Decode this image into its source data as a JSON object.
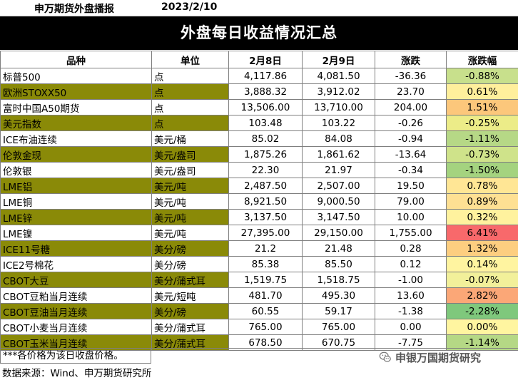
{
  "header": {
    "brand": "申万期货外盘播报",
    "date": "2023/2/10"
  },
  "title": "外盘每日收益情况汇总",
  "columns": [
    "品种",
    "单位",
    "2月8日",
    "2月9日",
    "涨跌",
    "涨跌幅"
  ],
  "rows": [
    {
      "name": "标普500",
      "unit": "点",
      "prev": "4,117.86",
      "curr": "4,081.50",
      "change": "-36.36",
      "pct": "-0.88%",
      "shade": "white",
      "color": "#c8e08c"
    },
    {
      "name": "欧洲STOXX50",
      "unit": "点",
      "prev": "3,888.32",
      "curr": "3,912.02",
      "change": "23.70",
      "pct": "0.61%",
      "shade": "olive",
      "color": "#ffef9c"
    },
    {
      "name": "富时中国A50期货",
      "unit": "点",
      "prev": "13,506.00",
      "curr": "13,710.00",
      "change": "204.00",
      "pct": "1.51%",
      "shade": "white",
      "color": "#fcc77b"
    },
    {
      "name": "美元指数",
      "unit": "点",
      "prev": "103.48",
      "curr": "103.22",
      "change": "-0.26",
      "pct": "-0.25%",
      "shade": "olive",
      "color": "#ecec88"
    },
    {
      "name": "ICE布油连续",
      "unit": "美元/桶",
      "prev": "85.02",
      "curr": "84.08",
      "change": "-0.94",
      "pct": "-1.11%",
      "shade": "white",
      "color": "#b6d886"
    },
    {
      "name": "伦敦金现",
      "unit": "美元/盎司",
      "prev": "1,875.26",
      "curr": "1,861.62",
      "change": "-13.64",
      "pct": "-0.73%",
      "shade": "olive",
      "color": "#cfe38a"
    },
    {
      "name": "伦敦银",
      "unit": "美元/盎司",
      "prev": "22.30",
      "curr": "21.97",
      "change": "-0.34",
      "pct": "-1.50%",
      "shade": "white",
      "color": "#a4d37f"
    },
    {
      "name": "LME铝",
      "unit": "美元/吨",
      "prev": "2,487.50",
      "curr": "2,507.00",
      "change": "19.50",
      "pct": "0.78%",
      "shade": "olive",
      "color": "#ffe695"
    },
    {
      "name": "LME铜",
      "unit": "美元/吨",
      "prev": "8,921.50",
      "curr": "9,000.50",
      "change": "79.00",
      "pct": "0.89%",
      "shade": "white",
      "color": "#fee093"
    },
    {
      "name": "LME锌",
      "unit": "美元/吨",
      "prev": "3,137.50",
      "curr": "3,147.50",
      "change": "10.00",
      "pct": "0.32%",
      "shade": "olive",
      "color": "#fff29e"
    },
    {
      "name": "LME镍",
      "unit": "美元/吨",
      "prev": "27,395.00",
      "curr": "29,150.00",
      "change": "1,755.00",
      "pct": "6.41%",
      "shade": "white",
      "color": "#f8696b"
    },
    {
      "name": "ICE11号糖",
      "unit": "美分/磅",
      "prev": "21.2",
      "curr": "21.48",
      "change": "0.28",
      "pct": "1.32%",
      "shade": "olive",
      "color": "#fdce80"
    },
    {
      "name": "ICE2号棉花",
      "unit": "美分/磅",
      "prev": "85.38",
      "curr": "85.50",
      "change": "0.12",
      "pct": "0.14%",
      "shade": "white",
      "color": "#fff4a0"
    },
    {
      "name": "CBOT大豆",
      "unit": "美分/蒲式耳",
      "prev": "1,519.75",
      "curr": "1,518.75",
      "change": "-1.00",
      "pct": "-0.07%",
      "shade": "olive",
      "color": "#f2f09a"
    },
    {
      "name": "CBOT豆粕当月连续",
      "unit": "美元/短吨",
      "prev": "481.70",
      "curr": "495.30",
      "change": "13.60",
      "pct": "2.82%",
      "shade": "white",
      "color": "#fba777"
    },
    {
      "name": "CBOT豆油当月连续",
      "unit": "美分/磅",
      "prev": "60.55",
      "curr": "59.17",
      "change": "-1.38",
      "pct": "-2.28%",
      "shade": "olive",
      "color": "#7fc87c"
    },
    {
      "name": "CBOT小麦当月连续",
      "unit": "美分/蒲式耳",
      "prev": "765.00",
      "curr": "765.00",
      "change": "0.00",
      "pct": "0.00%",
      "shade": "white",
      "color": "#fff5a0"
    },
    {
      "name": "CBOT玉米当月连续",
      "unit": "美分/蒲式耳",
      "prev": "678.50",
      "curr": "670.75",
      "change": "-7.75",
      "pct": "-1.14%",
      "shade": "olive",
      "color": "#b5d885"
    }
  ],
  "footnote": "***各价格为该日收盘价格。",
  "source": "数据来源：Wind、申万期货研究所",
  "watermark": "申银万国期货研究",
  "watermark_icon": "wechat-icon"
}
